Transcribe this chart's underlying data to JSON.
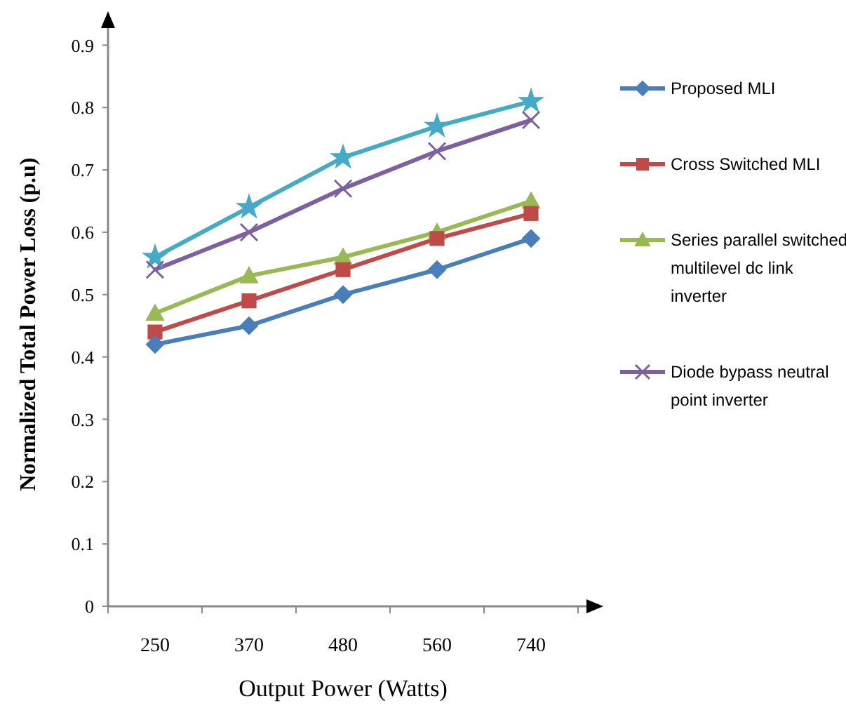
{
  "chart_data": {
    "type": "line",
    "xlabel": "Output Power (Watts)",
    "ylabel": "Normalized Total Power Loss (p.u)",
    "categories": [
      "250",
      "370",
      "480",
      "560",
      "740"
    ],
    "series": [
      {
        "name": "Proposed MLI",
        "color": "#4a7ebb",
        "marker": "diamond",
        "values": [
          0.42,
          0.45,
          0.5,
          0.54,
          0.59
        ]
      },
      {
        "name": "Cross Switched  MLI",
        "color": "#be4b48",
        "marker": "square",
        "values": [
          0.44,
          0.49,
          0.54,
          0.59,
          0.63
        ]
      },
      {
        "name": "Series parallel switched multilevel dc link inverter",
        "color": "#98b954",
        "marker": "triangle",
        "values": [
          0.47,
          0.53,
          0.56,
          0.6,
          0.65
        ]
      },
      {
        "name": "Diode bypass  neutral point inverter",
        "color": "#7d60a0",
        "marker": "cross",
        "values": [
          0.54,
          0.6,
          0.67,
          0.73,
          0.78
        ]
      },
      {
        "color": "#46aac5",
        "marker": "star",
        "values": [
          0.56,
          0.64,
          0.72,
          0.77,
          0.81
        ]
      }
    ],
    "ylim": [
      0,
      0.95
    ],
    "yticks": [
      0,
      0.1,
      0.2,
      0.3,
      0.4,
      0.5,
      0.6,
      0.7,
      0.8,
      0.9
    ],
    "grid": false,
    "legend": "right"
  }
}
